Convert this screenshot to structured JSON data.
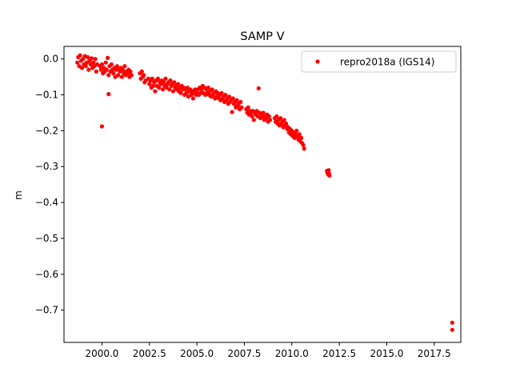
{
  "chart_data": {
    "type": "scatter",
    "title": "SAMP V",
    "xlabel": "",
    "ylabel": "m",
    "xlim": [
      1998.0,
      2018.9
    ],
    "ylim": [
      -0.79,
      0.035
    ],
    "xticks": [
      2000.0,
      2002.5,
      2005.0,
      2007.5,
      2010.0,
      2012.5,
      2015.0,
      2017.5
    ],
    "xtick_labels": [
      "2000.0",
      "2002.5",
      "2005.0",
      "2007.5",
      "2010.0",
      "2012.5",
      "2015.0",
      "2017.5"
    ],
    "yticks": [
      0.0,
      -0.1,
      -0.2,
      -0.3,
      -0.4,
      -0.5,
      -0.6,
      -0.7
    ],
    "ytick_labels": [
      "0.0",
      "−0.1",
      "−0.2",
      "−0.3",
      "−0.4",
      "−0.5",
      "−0.6",
      "−0.7"
    ],
    "grid": false,
    "legend_position": "top-right",
    "series": [
      {
        "name": "repro2018a (IGS14)",
        "color": "#ff0000",
        "marker": "circle",
        "points": [
          [
            1998.7,
            -0.01
          ],
          [
            1998.75,
            0.005
          ],
          [
            1998.8,
            -0.02
          ],
          [
            1998.85,
            0.01
          ],
          [
            1998.9,
            -0.005
          ],
          [
            1998.95,
            -0.025
          ],
          [
            1999.0,
            0.0
          ],
          [
            1999.05,
            -0.015
          ],
          [
            1999.1,
            0.008
          ],
          [
            1999.15,
            -0.02
          ],
          [
            1999.2,
            -0.01
          ],
          [
            1999.25,
            0.005
          ],
          [
            1999.3,
            -0.03
          ],
          [
            1999.35,
            -0.005
          ],
          [
            1999.4,
            -0.015
          ],
          [
            1999.45,
            0.002
          ],
          [
            1999.5,
            -0.025
          ],
          [
            1999.55,
            -0.01
          ],
          [
            1999.6,
            -0.02
          ],
          [
            1999.65,
            0.0
          ],
          [
            1999.7,
            -0.035
          ],
          [
            1999.75,
            -0.015
          ],
          [
            1999.9,
            -0.02
          ],
          [
            1999.95,
            -0.03
          ],
          [
            2000.0,
            -0.015
          ],
          [
            2000.05,
            -0.04
          ],
          [
            2000.1,
            -0.025
          ],
          [
            2000.15,
            -0.035
          ],
          [
            2000.2,
            -0.01
          ],
          [
            2000.25,
            -0.03
          ],
          [
            2000.3,
            0.003
          ],
          [
            2000.35,
            -0.045
          ],
          [
            2000.4,
            -0.02
          ],
          [
            2000.45,
            -0.035
          ],
          [
            2000.5,
            -0.015
          ],
          [
            2000.55,
            -0.03
          ],
          [
            2000.6,
            -0.04
          ],
          [
            2000.65,
            -0.025
          ],
          [
            2000.7,
            -0.05
          ],
          [
            2000.75,
            -0.03
          ],
          [
            2000.8,
            -0.02
          ],
          [
            2000.85,
            -0.045
          ],
          [
            2000.9,
            -0.03
          ],
          [
            2000.95,
            -0.035
          ],
          [
            2001.0,
            -0.025
          ],
          [
            2001.05,
            -0.05
          ],
          [
            2001.1,
            -0.03
          ],
          [
            2001.15,
            -0.04
          ],
          [
            2001.2,
            -0.02
          ],
          [
            2001.25,
            -0.045
          ],
          [
            2001.3,
            -0.035
          ],
          [
            2001.35,
            -0.04
          ],
          [
            2001.4,
            -0.03
          ],
          [
            2001.45,
            -0.05
          ],
          [
            2001.5,
            -0.035
          ],
          [
            2001.55,
            -0.045
          ],
          [
            2000.0,
            -0.188
          ],
          [
            2000.35,
            -0.098
          ],
          [
            2002.0,
            -0.04
          ],
          [
            2002.05,
            -0.055
          ],
          [
            2002.1,
            -0.035
          ],
          [
            2002.15,
            -0.05
          ],
          [
            2002.2,
            -0.045
          ],
          [
            2002.25,
            -0.065
          ],
          [
            2002.3,
            -0.06
          ],
          [
            2002.45,
            -0.055
          ],
          [
            2002.5,
            -0.07
          ],
          [
            2002.55,
            -0.06
          ],
          [
            2002.6,
            -0.08
          ],
          [
            2002.65,
            -0.055
          ],
          [
            2002.7,
            -0.075
          ],
          [
            2002.75,
            -0.065
          ],
          [
            2002.8,
            -0.09
          ],
          [
            2002.85,
            -0.06
          ],
          [
            2002.9,
            -0.075
          ],
          [
            2002.95,
            -0.055
          ],
          [
            2003.0,
            -0.08
          ],
          [
            2003.05,
            -0.065
          ],
          [
            2003.1,
            -0.07
          ],
          [
            2003.15,
            -0.06
          ],
          [
            2003.2,
            -0.085
          ],
          [
            2003.25,
            -0.065
          ],
          [
            2003.3,
            -0.075
          ],
          [
            2003.35,
            -0.055
          ],
          [
            2003.4,
            -0.08
          ],
          [
            2003.45,
            -0.07
          ],
          [
            2003.5,
            -0.065
          ],
          [
            2003.55,
            -0.085
          ],
          [
            2003.6,
            -0.06
          ],
          [
            2003.65,
            -0.075
          ],
          [
            2003.7,
            -0.07
          ],
          [
            2003.75,
            -0.09
          ],
          [
            2003.8,
            -0.065
          ],
          [
            2003.85,
            -0.08
          ],
          [
            2003.9,
            -0.075
          ],
          [
            2003.95,
            -0.085
          ],
          [
            2004.0,
            -0.07
          ],
          [
            2004.05,
            -0.09
          ],
          [
            2004.1,
            -0.08
          ],
          [
            2004.15,
            -0.095
          ],
          [
            2004.2,
            -0.075
          ],
          [
            2004.25,
            -0.085
          ],
          [
            2004.3,
            -0.08
          ],
          [
            2004.35,
            -0.1
          ],
          [
            2004.4,
            -0.085
          ],
          [
            2004.45,
            -0.095
          ],
          [
            2004.5,
            -0.08
          ],
          [
            2004.55,
            -0.105
          ],
          [
            2004.6,
            -0.09
          ],
          [
            2004.65,
            -0.085
          ],
          [
            2004.7,
            -0.1
          ],
          [
            2004.75,
            -0.09
          ],
          [
            2004.8,
            -0.11
          ],
          [
            2004.85,
            -0.095
          ],
          [
            2004.9,
            -0.085
          ],
          [
            2004.95,
            -0.1
          ],
          [
            2005.0,
            -0.095
          ],
          [
            2005.05,
            -0.085
          ],
          [
            2005.1,
            -0.1
          ],
          [
            2005.15,
            -0.08
          ],
          [
            2005.2,
            -0.095
          ],
          [
            2005.25,
            -0.085
          ],
          [
            2005.3,
            -0.075
          ],
          [
            2005.35,
            -0.095
          ],
          [
            2005.4,
            -0.08
          ],
          [
            2005.45,
            -0.1
          ],
          [
            2005.5,
            -0.085
          ],
          [
            2005.55,
            -0.095
          ],
          [
            2005.6,
            -0.08
          ],
          [
            2005.65,
            -0.1
          ],
          [
            2005.7,
            -0.09
          ],
          [
            2005.75,
            -0.105
          ],
          [
            2005.8,
            -0.085
          ],
          [
            2005.85,
            -0.1
          ],
          [
            2005.9,
            -0.095
          ],
          [
            2005.95,
            -0.11
          ],
          [
            2006.0,
            -0.09
          ],
          [
            2006.05,
            -0.105
          ],
          [
            2006.1,
            -0.095
          ],
          [
            2006.15,
            -0.11
          ],
          [
            2006.2,
            -0.1
          ],
          [
            2006.25,
            -0.115
          ],
          [
            2006.3,
            -0.095
          ],
          [
            2006.35,
            -0.11
          ],
          [
            2006.4,
            -0.105
          ],
          [
            2006.45,
            -0.12
          ],
          [
            2006.5,
            -0.1
          ],
          [
            2006.55,
            -0.115
          ],
          [
            2006.6,
            -0.11
          ],
          [
            2006.65,
            -0.125
          ],
          [
            2006.7,
            -0.105
          ],
          [
            2006.75,
            -0.12
          ],
          [
            2006.8,
            -0.115
          ],
          [
            2006.85,
            -0.148
          ],
          [
            2006.9,
            -0.11
          ],
          [
            2006.95,
            -0.125
          ],
          [
            2007.0,
            -0.12
          ],
          [
            2007.05,
            -0.135
          ],
          [
            2007.1,
            -0.115
          ],
          [
            2007.15,
            -0.13
          ],
          [
            2007.2,
            -0.125
          ],
          [
            2007.25,
            -0.14
          ],
          [
            2007.3,
            -0.12
          ],
          [
            2007.35,
            -0.135
          ],
          [
            2007.6,
            -0.14
          ],
          [
            2007.65,
            -0.15
          ],
          [
            2007.7,
            -0.135
          ],
          [
            2007.75,
            -0.155
          ],
          [
            2007.8,
            -0.145
          ],
          [
            2007.85,
            -0.15
          ],
          [
            2007.9,
            -0.16
          ],
          [
            2007.95,
            -0.145
          ],
          [
            2008.0,
            -0.17
          ],
          [
            2008.05,
            -0.15
          ],
          [
            2008.1,
            -0.155
          ],
          [
            2008.15,
            -0.145
          ],
          [
            2008.2,
            -0.16
          ],
          [
            2008.25,
            -0.082
          ],
          [
            2008.3,
            -0.15
          ],
          [
            2008.35,
            -0.165
          ],
          [
            2008.4,
            -0.155
          ],
          [
            2008.45,
            -0.16
          ],
          [
            2008.5,
            -0.15
          ],
          [
            2008.55,
            -0.17
          ],
          [
            2008.6,
            -0.16
          ],
          [
            2008.65,
            -0.165
          ],
          [
            2008.7,
            -0.155
          ],
          [
            2008.75,
            -0.175
          ],
          [
            2008.8,
            -0.16
          ],
          [
            2008.85,
            -0.17
          ],
          [
            2009.1,
            -0.165
          ],
          [
            2009.15,
            -0.175
          ],
          [
            2009.2,
            -0.16
          ],
          [
            2009.25,
            -0.18
          ],
          [
            2009.3,
            -0.17
          ],
          [
            2009.35,
            -0.185
          ],
          [
            2009.4,
            -0.165
          ],
          [
            2009.45,
            -0.18
          ],
          [
            2009.5,
            -0.175
          ],
          [
            2009.55,
            -0.19
          ],
          [
            2009.6,
            -0.17
          ],
          [
            2009.65,
            -0.185
          ],
          [
            2009.7,
            -0.18
          ],
          [
            2009.75,
            -0.195
          ],
          [
            2009.8,
            -0.19
          ],
          [
            2009.85,
            -0.205
          ],
          [
            2009.9,
            -0.195
          ],
          [
            2009.95,
            -0.21
          ],
          [
            2010.0,
            -0.2
          ],
          [
            2010.05,
            -0.215
          ],
          [
            2010.1,
            -0.205
          ],
          [
            2010.15,
            -0.22
          ],
          [
            2010.2,
            -0.21
          ],
          [
            2010.25,
            -0.2
          ],
          [
            2010.3,
            -0.215
          ],
          [
            2010.35,
            -0.225
          ],
          [
            2010.4,
            -0.21
          ],
          [
            2010.45,
            -0.23
          ],
          [
            2010.5,
            -0.22
          ],
          [
            2010.55,
            -0.235
          ],
          [
            2010.6,
            -0.24
          ],
          [
            2010.65,
            -0.25
          ],
          [
            2011.85,
            -0.312
          ],
          [
            2011.88,
            -0.318
          ],
          [
            2011.9,
            -0.315
          ],
          [
            2011.92,
            -0.322
          ],
          [
            2011.94,
            -0.31
          ],
          [
            2011.96,
            -0.32
          ],
          [
            2011.98,
            -0.325
          ],
          [
            2018.45,
            -0.735
          ],
          [
            2018.45,
            -0.755
          ]
        ]
      }
    ]
  }
}
